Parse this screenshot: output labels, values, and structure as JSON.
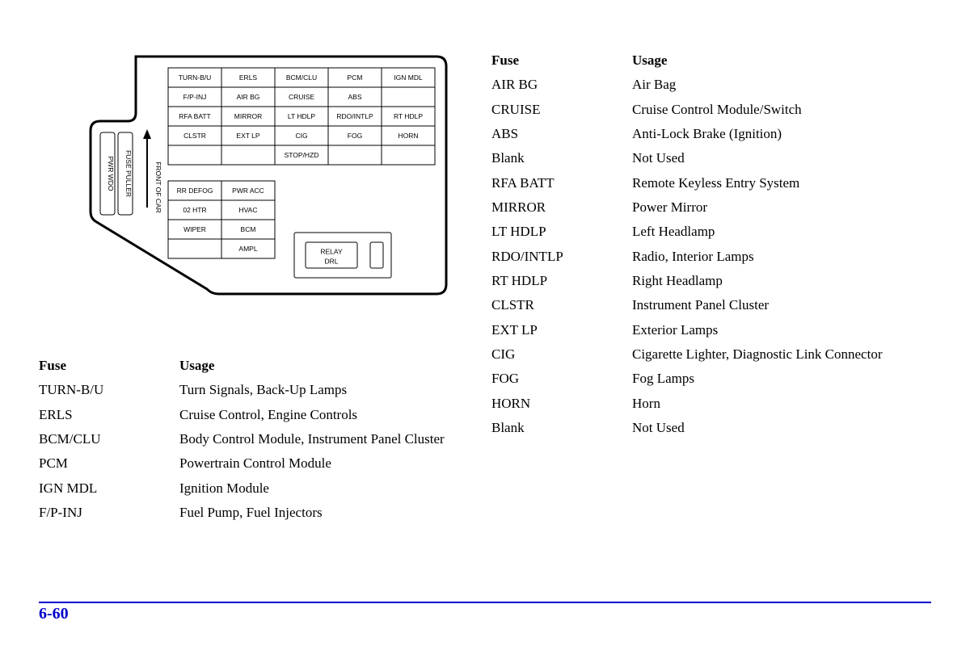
{
  "page_number": "6-60",
  "colors": {
    "accent": "#0000cc",
    "text": "#000000",
    "bg": "#ffffff"
  },
  "diagram": {
    "front_of_car_label": "FRONT OF CAR",
    "side_cells": [
      "PWR WDO",
      "FUSE PULLER"
    ],
    "relay_label_1": "RELAY",
    "relay_label_2": "DRL",
    "rows": {
      "r1": [
        "TURN-B/U",
        "ERLS",
        "BCM/CLU",
        "PCM",
        "IGN MDL"
      ],
      "r2": [
        "F/P-INJ",
        "AIR BG",
        "CRUISE",
        "ABS",
        ""
      ],
      "r3": [
        "RFA BATT",
        "MIRROR",
        "LT HDLP",
        "RDO/INTLP",
        "RT HDLP"
      ],
      "r4": [
        "CLSTR",
        "EXT LP",
        "CIG",
        "FOG",
        "HORN"
      ],
      "r5": [
        "",
        "",
        "STOP/HZD",
        "",
        ""
      ],
      "r6": [
        "RR DEFOG",
        "PWR ACC"
      ],
      "r7": [
        "02 HTR",
        "HVAC"
      ],
      "r8": [
        "WIPER",
        "BCM"
      ],
      "r9": [
        "",
        "AMPL"
      ]
    }
  },
  "headers": {
    "fuse": "Fuse",
    "usage": "Usage"
  },
  "left_table": [
    {
      "fuse": "TURN-B/U",
      "usage": "Turn Signals, Back-Up Lamps"
    },
    {
      "fuse": "ERLS",
      "usage": "Cruise Control, Engine Controls"
    },
    {
      "fuse": "BCM/CLU",
      "usage": "Body Control Module, Instrument Panel Cluster"
    },
    {
      "fuse": "PCM",
      "usage": "Powertrain Control Module"
    },
    {
      "fuse": "IGN MDL",
      "usage": "Ignition Module"
    },
    {
      "fuse": "F/P-INJ",
      "usage": "Fuel Pump, Fuel Injectors"
    }
  ],
  "right_table": [
    {
      "fuse": "AIR BG",
      "usage": "Air Bag"
    },
    {
      "fuse": "CRUISE",
      "usage": "Cruise Control Module/Switch"
    },
    {
      "fuse": "ABS",
      "usage": "Anti-Lock Brake (Ignition)"
    },
    {
      "fuse": "Blank",
      "usage": "Not Used"
    },
    {
      "fuse": "RFA BATT",
      "usage": "Remote Keyless Entry System"
    },
    {
      "fuse": "MIRROR",
      "usage": "Power Mirror"
    },
    {
      "fuse": "LT HDLP",
      "usage": "Left Headlamp"
    },
    {
      "fuse": "RDO/INTLP",
      "usage": "Radio, Interior Lamps"
    },
    {
      "fuse": "RT HDLP",
      "usage": "Right Headlamp"
    },
    {
      "fuse": "CLSTR",
      "usage": "Instrument Panel Cluster"
    },
    {
      "fuse": "EXT LP",
      "usage": "Exterior Lamps"
    },
    {
      "fuse": "CIG",
      "usage": "Cigarette Lighter, Diagnostic Link Connector"
    },
    {
      "fuse": "FOG",
      "usage": "Fog Lamps"
    },
    {
      "fuse": "HORN",
      "usage": "Horn"
    },
    {
      "fuse": "Blank",
      "usage": "Not Used"
    }
  ]
}
